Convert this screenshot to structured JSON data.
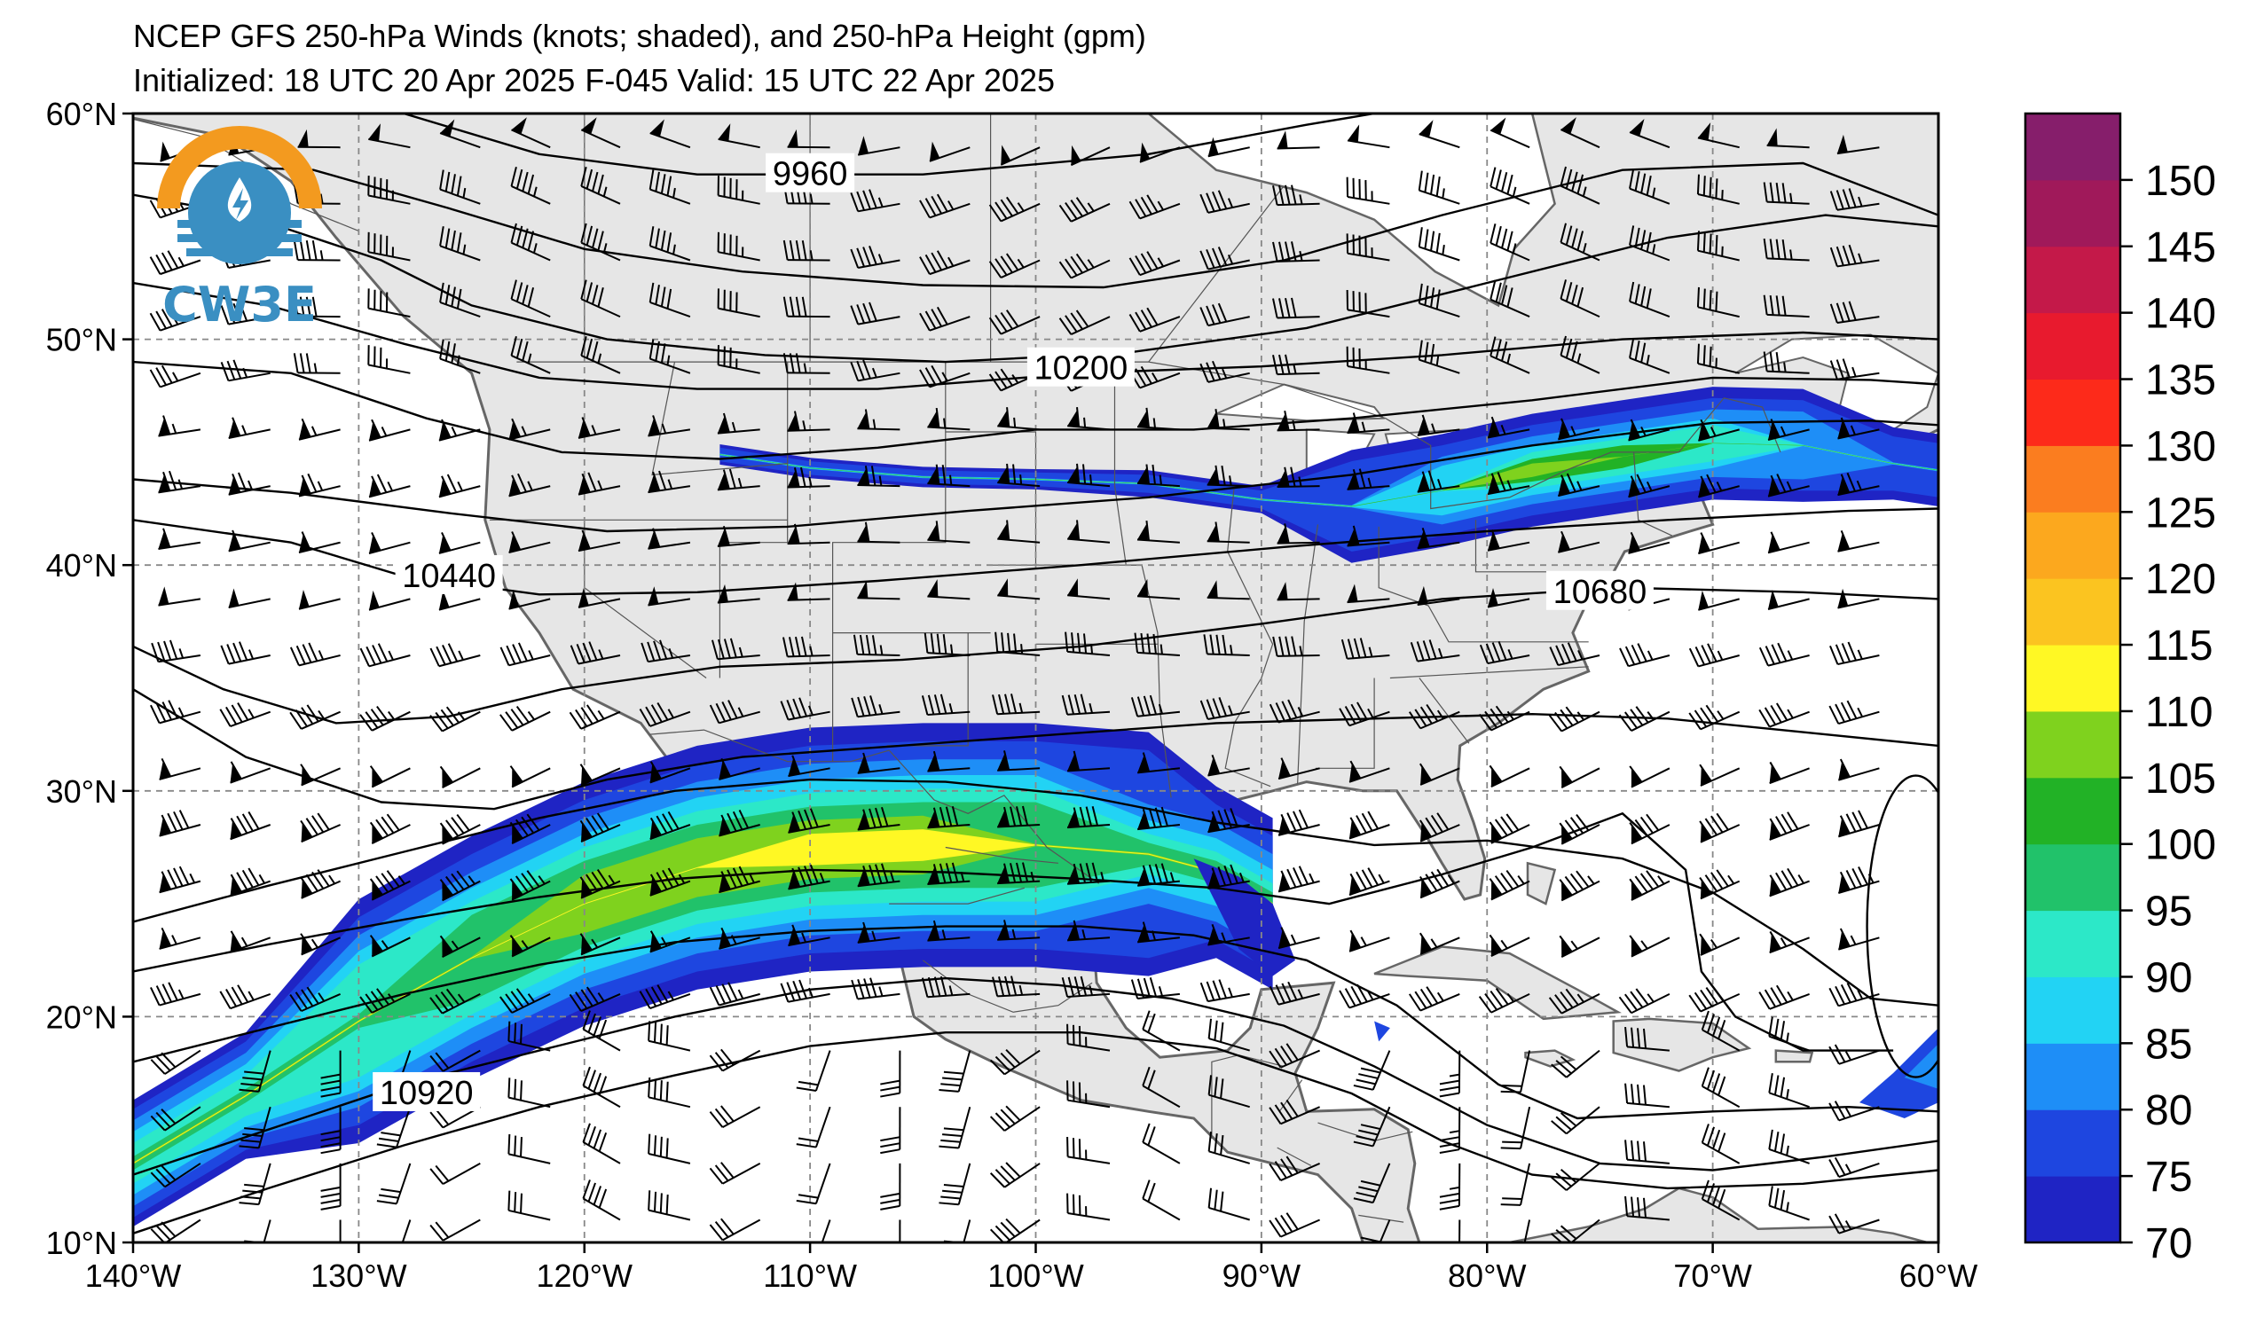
{
  "title": {
    "line1": "NCEP GFS 250-hPa Winds (knots; shaded), and 250-hPa Height (gpm)",
    "line2": "Initialized: 18 UTC 20 Apr 2025",
    "valid": "F-045  Valid: 15 UTC 22 Apr 2025"
  },
  "logo": {
    "text": "CW3E",
    "colors": {
      "orange": "#f39a1f",
      "blue": "#3a8fc2"
    }
  },
  "map": {
    "lon_range": [
      -140,
      -60
    ],
    "lat_range": [
      10,
      60
    ],
    "lon_ticks": [
      "140°W",
      "130°W",
      "120°W",
      "110°W",
      "100°W",
      "90°W",
      "80°W",
      "70°W",
      "60°W"
    ],
    "lat_ticks": [
      "60°N",
      "50°N",
      "40°N",
      "30°N",
      "20°N",
      "10°N"
    ],
    "land_color": "#e6e6e6",
    "grid": true
  },
  "colorbar": {
    "levels": [
      70,
      75,
      80,
      85,
      90,
      95,
      100,
      105,
      110,
      115,
      120,
      125,
      130,
      135,
      140,
      145,
      150,
      155
    ],
    "labels": [
      "70",
      "75",
      "80",
      "85",
      "90",
      "95",
      "100",
      "105",
      "110",
      "115",
      "120",
      "125",
      "130",
      "135",
      "140",
      "145",
      "150"
    ],
    "colors": [
      "#1f24c4",
      "#1e46e0",
      "#1e8ef7",
      "#22d3f4",
      "#2ce8c8",
      "#21c26a",
      "#22b226",
      "#7fd21e",
      "#fff824",
      "#fbc420",
      "#fca81e",
      "#fb7d1f",
      "#fd2a1a",
      "#e81a2e",
      "#c41949",
      "#a0195a",
      "#861e6b",
      "#6a1d80"
    ]
  },
  "contours": [
    {
      "label": "9960",
      "label_at": [
        -110,
        57.3
      ]
    },
    {
      "label": "10200",
      "label_at": [
        -98,
        48.7
      ]
    },
    {
      "label": "10440",
      "label_at": [
        -126,
        39.5
      ]
    },
    {
      "label": "10680",
      "label_at": [
        -75,
        38.8
      ]
    },
    {
      "label": "10920",
      "label_at": [
        -127,
        16.6
      ]
    }
  ],
  "chart_data": {
    "type": "heatmap",
    "title": "NCEP GFS 250-hPa Winds (knots; shaded), and 250-hPa Height (gpm)",
    "colorbar_range": [
      70,
      155
    ],
    "jet_streaks": [
      {
        "region": "subtropical jet over Mexico",
        "max_knots": 110,
        "center": [
          -107,
          27.5
        ]
      },
      {
        "region": "northern jet over Great Lakes / New England",
        "max_knots": 105,
        "center": [
          -77,
          44.3
        ]
      }
    ],
    "height_contour_labels": [
      9960,
      10200,
      10440,
      10680,
      10920
    ]
  }
}
